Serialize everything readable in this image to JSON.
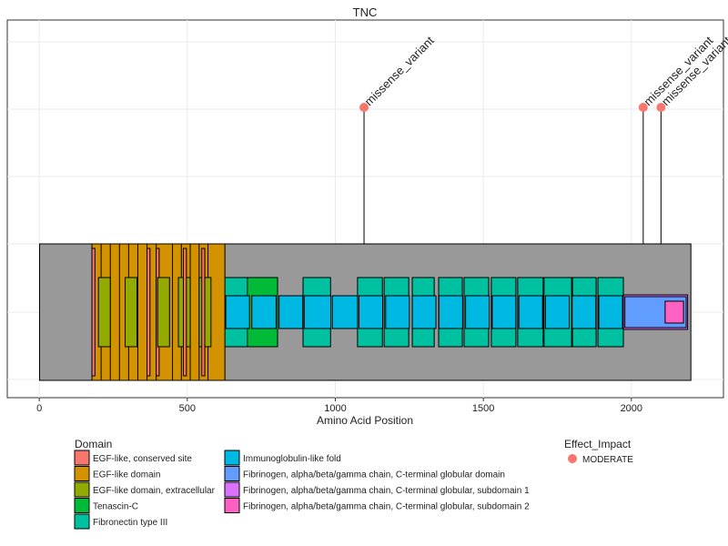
{
  "chart_data": {
    "type": "lollipop",
    "title": "TNC",
    "x_label": "Amino Acid Position",
    "xlim": [
      -108,
      2311
    ],
    "xticks": [
      0,
      500,
      1000,
      1500,
      2000
    ],
    "backbone": [
      1,
      2201
    ],
    "domain_legend_title": "Domain",
    "domains": [
      {
        "name": "EGF-like, conserved site",
        "color": "#F8766D"
      },
      {
        "name": "EGF-like domain",
        "color": "#D39200"
      },
      {
        "name": "EGF-like domain, extracellular",
        "color": "#93AA00"
      },
      {
        "name": "Tenascin-C",
        "color": "#00BA38"
      },
      {
        "name": "Fibronectin type III",
        "color": "#00C19F"
      },
      {
        "name": "Immunoglobulin-like fold",
        "color": "#00B9E3"
      },
      {
        "name": "Fibrinogen, alpha/beta/gamma chain, C-terminal globular domain",
        "color": "#619CFF"
      },
      {
        "name": "Fibrinogen, alpha/beta/gamma chain, C-terminal globular, subdomain 1",
        "color": "#DB72FB"
      },
      {
        "name": "Fibrinogen, alpha/beta/gamma chain, C-terminal globular, subdomain 2",
        "color": "#FF61C3"
      }
    ],
    "features": [
      {
        "domain": 1,
        "start": 178,
        "end": 240
      },
      {
        "domain": 1,
        "start": 209,
        "end": 271
      },
      {
        "domain": 1,
        "start": 240,
        "end": 302
      },
      {
        "domain": 1,
        "start": 271,
        "end": 333
      },
      {
        "domain": 1,
        "start": 302,
        "end": 364
      },
      {
        "domain": 1,
        "start": 333,
        "end": 395
      },
      {
        "domain": 1,
        "start": 364,
        "end": 426
      },
      {
        "domain": 1,
        "start": 395,
        "end": 470
      },
      {
        "domain": 0,
        "start": 178,
        "end": 188
      },
      {
        "domain": 0,
        "start": 364,
        "end": 374
      },
      {
        "domain": 0,
        "start": 395,
        "end": 405
      },
      {
        "domain": 4,
        "start": 620,
        "end": 705
      },
      {
        "domain": 3,
        "start": 703,
        "end": 805
      },
      {
        "domain": 4,
        "start": 891,
        "end": 984
      },
      {
        "domain": 4,
        "start": 1075,
        "end": 1159
      },
      {
        "domain": 4,
        "start": 1165,
        "end": 1248
      },
      {
        "domain": 4,
        "start": 1260,
        "end": 1334
      },
      {
        "domain": 4,
        "start": 1349,
        "end": 1429
      },
      {
        "domain": 4,
        "start": 1435,
        "end": 1518
      },
      {
        "domain": 4,
        "start": 1527,
        "end": 1610
      },
      {
        "domain": 4,
        "start": 1616,
        "end": 1702
      },
      {
        "domain": 4,
        "start": 1705,
        "end": 1798
      },
      {
        "domain": 4,
        "start": 1801,
        "end": 1881
      },
      {
        "domain": 4,
        "start": 1887,
        "end": 1973
      },
      {
        "domain": 1,
        "start": 450,
        "end": 500
      },
      {
        "domain": 1,
        "start": 480,
        "end": 530
      },
      {
        "domain": 1,
        "start": 510,
        "end": 560
      },
      {
        "domain": 1,
        "start": 540,
        "end": 590
      },
      {
        "domain": 1,
        "start": 570,
        "end": 627
      },
      {
        "domain": 2,
        "start": 200,
        "end": 240
      },
      {
        "domain": 2,
        "start": 290,
        "end": 330
      },
      {
        "domain": 2,
        "start": 400,
        "end": 440
      },
      {
        "domain": 2,
        "start": 470,
        "end": 510
      },
      {
        "domain": 2,
        "start": 540,
        "end": 580
      },
      {
        "domain": 0,
        "start": 487,
        "end": 497
      },
      {
        "domain": 0,
        "start": 549,
        "end": 559
      },
      {
        "domain": 5,
        "start": 630,
        "end": 710
      },
      {
        "domain": 5,
        "start": 718,
        "end": 800
      },
      {
        "domain": 5,
        "start": 810,
        "end": 890
      },
      {
        "domain": 5,
        "start": 895,
        "end": 985
      },
      {
        "domain": 5,
        "start": 990,
        "end": 1075
      },
      {
        "domain": 5,
        "start": 1080,
        "end": 1160
      },
      {
        "domain": 5,
        "start": 1170,
        "end": 1250
      },
      {
        "domain": 5,
        "start": 1260,
        "end": 1340
      },
      {
        "domain": 5,
        "start": 1350,
        "end": 1430
      },
      {
        "domain": 5,
        "start": 1440,
        "end": 1520
      },
      {
        "domain": 5,
        "start": 1530,
        "end": 1610
      },
      {
        "domain": 5,
        "start": 1620,
        "end": 1700
      },
      {
        "domain": 5,
        "start": 1710,
        "end": 1790
      },
      {
        "domain": 5,
        "start": 1800,
        "end": 1880
      },
      {
        "domain": 5,
        "start": 1890,
        "end": 1970
      },
      {
        "domain": 7,
        "start": 1973,
        "end": 2190
      },
      {
        "domain": 6,
        "start": 1978,
        "end": 2185
      },
      {
        "domain": 8,
        "start": 2114,
        "end": 2176
      }
    ],
    "effect_legend_title": "Effect_Impact",
    "effects": [
      {
        "name": "MODERATE",
        "color": "#F8766D"
      }
    ],
    "variants": [
      {
        "position": 1097,
        "label": "missense_variant",
        "effect": 0
      },
      {
        "position": 2040,
        "label": "missense_variant",
        "effect": 0
      },
      {
        "position": 2100,
        "label": "missense_variant",
        "effect": 0
      }
    ]
  }
}
